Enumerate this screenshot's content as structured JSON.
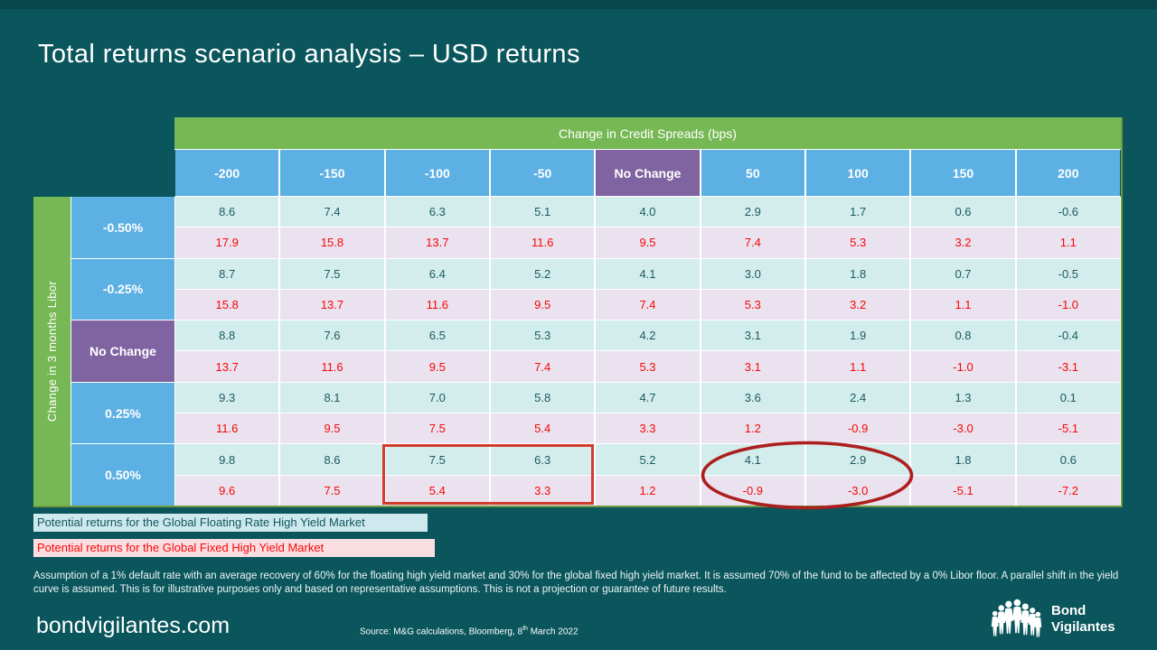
{
  "slide": {
    "title": "Total returns scenario analysis – USD returns"
  },
  "chart_data": {
    "type": "table",
    "title": "Total returns scenario analysis – USD returns",
    "col_axis_label": "Change in Credit Spreads (bps)",
    "row_axis_label": "Change in 3 months Libor",
    "columns": [
      "-200",
      "-150",
      "-100",
      "-50",
      "No Change",
      "50",
      "100",
      "150",
      "200"
    ],
    "rows": [
      {
        "label": "-0.50%",
        "floating": [
          "8.6",
          "7.4",
          "6.3",
          "5.1",
          "4.0",
          "2.9",
          "1.7",
          "0.6",
          "-0.6"
        ],
        "fixed": [
          "17.9",
          "15.8",
          "13.7",
          "11.6",
          "9.5",
          "7.4",
          "5.3",
          "3.2",
          "1.1"
        ]
      },
      {
        "label": "-0.25%",
        "floating": [
          "8.7",
          "7.5",
          "6.4",
          "5.2",
          "4.1",
          "3.0",
          "1.8",
          "0.7",
          "-0.5"
        ],
        "fixed": [
          "15.8",
          "13.7",
          "11.6",
          "9.5",
          "7.4",
          "5.3",
          "3.2",
          "1.1",
          "-1.0"
        ]
      },
      {
        "label": "No Change",
        "floating": [
          "8.8",
          "7.6",
          "6.5",
          "5.3",
          "4.2",
          "3.1",
          "1.9",
          "0.8",
          "-0.4"
        ],
        "fixed": [
          "13.7",
          "11.6",
          "9.5",
          "7.4",
          "5.3",
          "3.1",
          "1.1",
          "-1.0",
          "-3.1"
        ]
      },
      {
        "label": "0.25%",
        "floating": [
          "9.3",
          "8.1",
          "7.0",
          "5.8",
          "4.7",
          "3.6",
          "2.4",
          "1.3",
          "0.1"
        ],
        "fixed": [
          "11.6",
          "9.5",
          "7.5",
          "5.4",
          "3.3",
          "1.2",
          "-0.9",
          "-3.0",
          "-5.1"
        ]
      },
      {
        "label": "0.50%",
        "floating": [
          "9.8",
          "8.6",
          "7.5",
          "6.3",
          "5.2",
          "4.1",
          "2.9",
          "1.8",
          "0.6"
        ],
        "fixed": [
          "9.6",
          "7.5",
          "5.4",
          "3.3",
          "1.2",
          "-0.9",
          "-3.0",
          "-5.1",
          "-7.2"
        ]
      }
    ],
    "annotations": [
      {
        "shape": "rectangle",
        "color": "#d23c2c",
        "row": "0.50%",
        "columns": [
          "-100",
          "-50"
        ]
      },
      {
        "shape": "ellipse",
        "color": "#ad1f1f",
        "row": "0.50%",
        "columns": [
          "50",
          "100"
        ]
      }
    ],
    "legend_position": "below-table"
  },
  "legend": [
    {
      "label": "Potential returns for the Global Floating Rate High Yield Market",
      "bg": "#cde9ee",
      "color": "#12565e"
    },
    {
      "label": "Potential returns for the Global Fixed High Yield Market",
      "bg": "#fbdee2",
      "color": "#f70808"
    }
  ],
  "footnote": "Assumption of a 1% default rate with an average recovery of 60% for the floating high yield market and 30% for the global fixed high yield market. It is assumed 70% of the fund to be affected by a 0% Libor floor. A parallel shift in the yield curve is assumed. This is for illustrative purposes only and based on representative assumptions. This is not a projection or guarantee of future results.",
  "footer": {
    "website": "bondvigilantes.com",
    "source_pre": "Source: M&G calculations, Bloomberg, 8",
    "source_sup": "th",
    "source_post": " March 2022"
  },
  "logo": {
    "line1": "Bond",
    "line2": "Vigilantes"
  },
  "colors": {
    "background": "#0a565c",
    "top_strip": "#07464c",
    "green": "#76b854",
    "blue": "#5cb0e4",
    "purple": "#8064a2",
    "floating_cell_bg": "#d3edec",
    "fixed_cell_bg": "#eae2ee",
    "floating_text": "#1d5a60",
    "fixed_text": "#f70808",
    "rectangle_annotation": "#d23c2c",
    "ellipse_annotation": "#ad1f1f",
    "table_outer_border": "#6f9a40"
  }
}
